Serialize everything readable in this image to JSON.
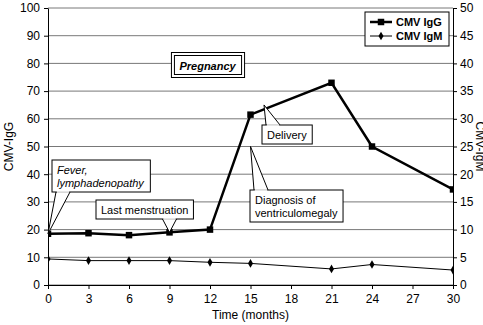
{
  "chart_data": {
    "type": "line",
    "x": [
      0,
      3,
      6,
      9,
      12,
      15,
      21,
      24,
      30
    ],
    "series": [
      {
        "name": "CMV IgG",
        "color": "#000000",
        "marker": "square",
        "values": [
          18.5,
          18.7,
          18,
          19,
          20,
          61.5,
          73,
          50,
          34.5
        ]
      },
      {
        "name": "CMV IgM",
        "color": "#000000",
        "marker": "diamond",
        "axis": "y2",
        "values": [
          4.7,
          4.4,
          4.4,
          4.4,
          4.1,
          3.9,
          2.9,
          3.7,
          2.7
        ]
      }
    ],
    "x_label": "Time (months)",
    "y_label": "CMV-IgG",
    "y2_label": "CMV-IgM",
    "xlim": [
      0,
      30
    ],
    "xticks": [
      0,
      3,
      6,
      9,
      12,
      15,
      18,
      21,
      24,
      27,
      30
    ],
    "ylim": [
      0,
      100
    ],
    "yticks": [
      0,
      10,
      20,
      30,
      40,
      50,
      60,
      70,
      80,
      90,
      100
    ],
    "y2lim": [
      0,
      50
    ],
    "y2ticks": [
      0,
      5,
      10,
      15,
      20,
      25,
      30,
      35,
      40,
      45,
      50
    ],
    "grid": true,
    "legend": "upper right",
    "annotations": [
      {
        "text": "Pregnancy"
      },
      {
        "text": "Fever, lymphadenopathy",
        "x": 0,
        "y": 18.5
      },
      {
        "text": "Last menstruation",
        "x": 9,
        "y": 19
      },
      {
        "text": "Diagnosis of ventriculomegaly",
        "x": 15,
        "y": 50
      },
      {
        "text": "Delivery",
        "x": 16,
        "y": 65
      }
    ]
  }
}
